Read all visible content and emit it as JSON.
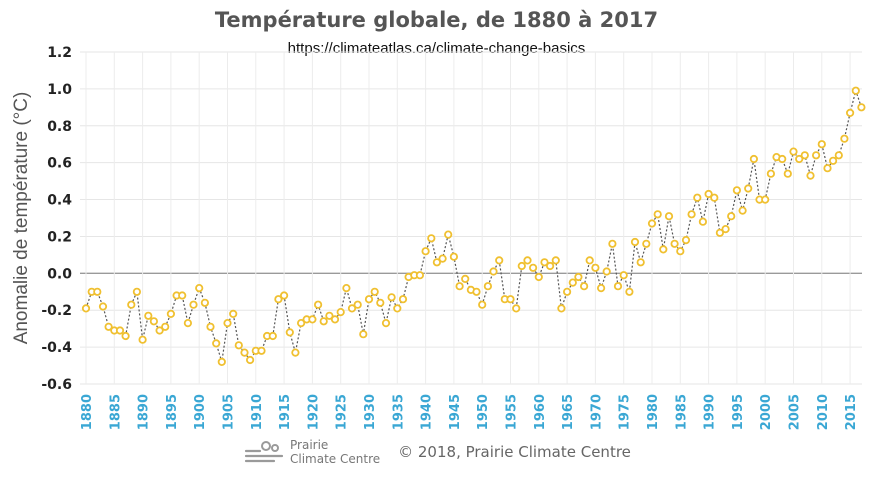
{
  "chart_data": {
    "type": "line",
    "title": "Température globale, de 1880 à 2017",
    "subtitle": "https://climateatlas.ca/climate-change-basics",
    "ylabel": "Anomalie de température (°C)",
    "xlabel": "",
    "ylim": [
      -0.6,
      1.2
    ],
    "yticks": [
      "1.2",
      "1.0",
      "0.8",
      "0.6",
      "0.4",
      "0.2",
      "0.0",
      "-0.2",
      "-0.4",
      "-0.6"
    ],
    "xticks": [
      1880,
      1885,
      1890,
      1895,
      1900,
      1905,
      1910,
      1915,
      1920,
      1925,
      1930,
      1935,
      1940,
      1945,
      1950,
      1955,
      1960,
      1965,
      1970,
      1975,
      1980,
      1985,
      1990,
      1995,
      2000,
      2005,
      2010,
      2015
    ],
    "x_start": 1880,
    "x_end": 2017,
    "grid": true,
    "reference_line": 0.0,
    "series": [
      {
        "color": "#f0c030",
        "values": [
          -0.19,
          -0.1,
          -0.1,
          -0.18,
          -0.29,
          -0.31,
          -0.31,
          -0.34,
          -0.17,
          -0.1,
          -0.36,
          -0.23,
          -0.26,
          -0.31,
          -0.29,
          -0.22,
          -0.12,
          -0.12,
          -0.27,
          -0.17,
          -0.08,
          -0.16,
          -0.29,
          -0.38,
          -0.48,
          -0.27,
          -0.22,
          -0.39,
          -0.43,
          -0.47,
          -0.42,
          -0.42,
          -0.34,
          -0.34,
          -0.14,
          -0.12,
          -0.32,
          -0.43,
          -0.27,
          -0.25,
          -0.25,
          -0.17,
          -0.26,
          -0.23,
          -0.25,
          -0.21,
          -0.08,
          -0.19,
          -0.17,
          -0.33,
          -0.14,
          -0.1,
          -0.16,
          -0.27,
          -0.13,
          -0.19,
          -0.14,
          -0.02,
          -0.01,
          -0.01,
          0.12,
          0.19,
          0.06,
          0.08,
          0.21,
          0.09,
          -0.07,
          -0.03,
          -0.09,
          -0.1,
          -0.17,
          -0.07,
          0.01,
          0.07,
          -0.14,
          -0.14,
          -0.19,
          0.04,
          0.07,
          0.03,
          -0.02,
          0.06,
          0.04,
          0.07,
          -0.19,
          -0.1,
          -0.05,
          -0.02,
          -0.07,
          0.07,
          0.03,
          -0.08,
          0.01,
          0.16,
          -0.07,
          -0.01,
          -0.1,
          0.17,
          0.06,
          0.16,
          0.27,
          0.32,
          0.13,
          0.31,
          0.16,
          0.12,
          0.18,
          0.32,
          0.41,
          0.28,
          0.43,
          0.41,
          0.22,
          0.24,
          0.31,
          0.45,
          0.34,
          0.46,
          0.62,
          0.4,
          0.4,
          0.54,
          0.63,
          0.62,
          0.54,
          0.66,
          0.62,
          0.64,
          0.53,
          0.64,
          0.7,
          0.57,
          0.61,
          0.64,
          0.73,
          0.87,
          0.99,
          0.9
        ]
      }
    ]
  },
  "footer": {
    "logo_line1": "Prairie",
    "logo_line2": "Climate Centre",
    "copyright": "© 2018, Prairie Climate Centre"
  }
}
